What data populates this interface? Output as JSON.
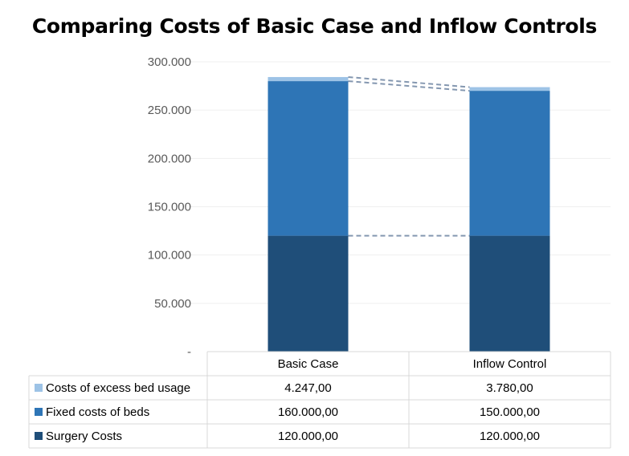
{
  "chart_data": {
    "type": "bar",
    "stacked": true,
    "title": "Comparing Costs of Basic Case and Inflow Controls",
    "categories": [
      "Basic Case",
      "Inflow Control"
    ],
    "series": [
      {
        "name": "Surgery Costs",
        "values": [
          120000,
          120000
        ],
        "value_labels": [
          "120.000,00",
          "120.000,00"
        ],
        "color": "#1f4e79"
      },
      {
        "name": "Fixed costs of beds",
        "values": [
          160000,
          150000
        ],
        "value_labels": [
          "160.000,00",
          "150.000,00"
        ],
        "color": "#2e75b6"
      },
      {
        "name": "Costs of excess bed usage",
        "values": [
          4247,
          3780
        ],
        "value_labels": [
          "4.247,00",
          "3.780,00"
        ],
        "color": "#9dc3e6"
      }
    ],
    "y_ticks": [
      0,
      50000,
      100000,
      150000,
      200000,
      250000,
      300000
    ],
    "y_tick_labels": [
      "-",
      "50.000",
      "100.000",
      "150.000",
      "200.000",
      "250.000",
      "300.000"
    ],
    "ylim": [
      0,
      300000
    ],
    "grid": true,
    "legend": "data table below chart",
    "series_lines": true
  }
}
